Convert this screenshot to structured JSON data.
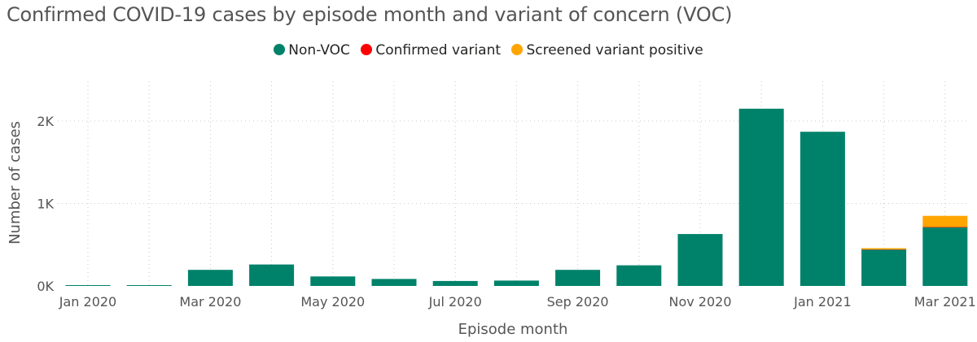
{
  "chart_data": {
    "type": "bar",
    "stacked": true,
    "title": "Confirmed COVID-19 cases by episode month and variant of concern (VOC)",
    "xlabel": "Episode month",
    "ylabel": "Number of cases",
    "ylim": [
      0,
      2300
    ],
    "yticks": [
      {
        "value": 0,
        "label": "0K"
      },
      {
        "value": 1000,
        "label": "1K"
      },
      {
        "value": 2000,
        "label": "2K"
      }
    ],
    "grid": true,
    "legend_position": "top-center",
    "categories": [
      "Jan 2020",
      "Feb 2020",
      "Mar 2020",
      "Apr 2020",
      "May 2020",
      "Jun 2020",
      "Jul 2020",
      "Aug 2020",
      "Sep 2020",
      "Oct 2020",
      "Nov 2020",
      "Dec 2020",
      "Jan 2021",
      "Feb 2021",
      "Mar 2021"
    ],
    "xtick_labels": [
      "Jan 2020",
      "",
      "Mar 2020",
      "",
      "May 2020",
      "",
      "Jul 2020",
      "",
      "Sep 2020",
      "",
      "Nov 2020",
      "",
      "Jan 2021",
      "",
      "Mar 2021"
    ],
    "series": [
      {
        "name": "Non-VOC",
        "color": "#00826A",
        "values": [
          3,
          8,
          195,
          260,
          115,
          85,
          60,
          65,
          195,
          250,
          630,
          2150,
          1870,
          440,
          710
        ]
      },
      {
        "name": "Confirmed variant",
        "color": "#FF0000",
        "values": [
          0,
          0,
          0,
          0,
          0,
          0,
          0,
          0,
          0,
          0,
          0,
          0,
          0,
          3,
          5
        ]
      },
      {
        "name": "Screened variant positive",
        "color": "#FFA500",
        "values": [
          0,
          0,
          0,
          0,
          0,
          0,
          0,
          0,
          0,
          0,
          0,
          0,
          0,
          15,
          135
        ]
      }
    ]
  }
}
